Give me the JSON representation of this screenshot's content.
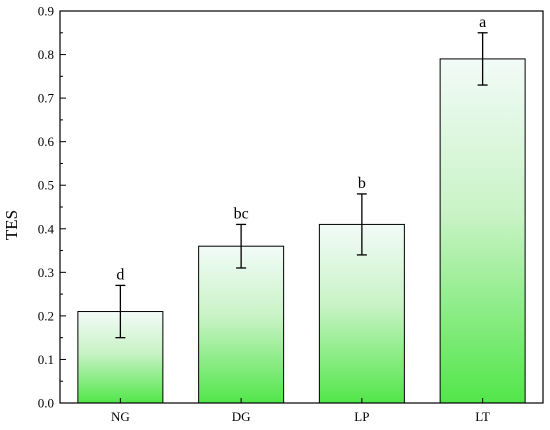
{
  "chart_data": {
    "type": "bar",
    "title": "",
    "xlabel": "",
    "ylabel": "TES",
    "categories": [
      "NG",
      "DG",
      "LP",
      "LT"
    ],
    "values": [
      0.21,
      0.36,
      0.41,
      0.79
    ],
    "errors": [
      0.06,
      0.05,
      0.07,
      0.06
    ],
    "significance_labels": [
      "d",
      "bc",
      "b",
      "a"
    ],
    "ylim": [
      0,
      0.9
    ],
    "yticks": [
      "0.0",
      "0.1",
      "0.2",
      "0.3",
      "0.4",
      "0.5",
      "0.6",
      "0.7",
      "0.8",
      "0.9"
    ],
    "grid": false,
    "legend": "none"
  },
  "colors": {
    "bar_top": "#f2fbf8",
    "bar_bottom": "#52e64a",
    "axis": "#000000"
  }
}
